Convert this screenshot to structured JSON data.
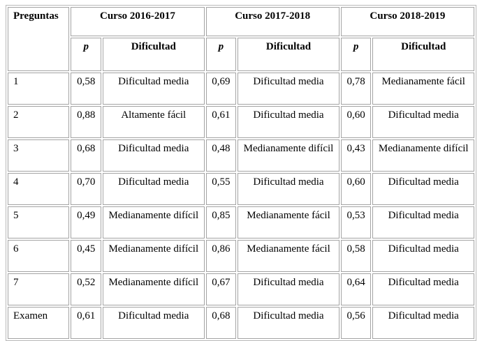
{
  "table": {
    "corner_header": "Preguntas",
    "group_headers": [
      "Curso 2016-2017",
      "Curso 2017-2018",
      "Curso 2018-2019"
    ],
    "sub_header_p": "p",
    "sub_header_dificultad": "Dificultad",
    "rows": [
      {
        "label": "1",
        "values": [
          "0,58",
          "Dificultad media",
          "0,69",
          "Dificultad media",
          "0,78",
          "Medianamente fácil"
        ]
      },
      {
        "label": "2",
        "values": [
          "0,88",
          "Altamente fácil",
          "0,61",
          "Dificultad media",
          "0,60",
          "Dificultad media"
        ]
      },
      {
        "label": "3",
        "values": [
          "0,68",
          "Dificultad media",
          "0,48",
          "Medianamente difícil",
          "0,43",
          "Medianamente difícil"
        ]
      },
      {
        "label": "4",
        "values": [
          "0,70",
          "Dificultad media",
          "0,55",
          "Dificultad media",
          "0,60",
          "Dificultad media"
        ]
      },
      {
        "label": "5",
        "values": [
          "0,49",
          "Medianamente difícil",
          "0,85",
          "Medianamente fácil",
          "0,53",
          "Dificultad media"
        ]
      },
      {
        "label": "6",
        "values": [
          "0,45",
          "Medianamente difícil",
          "0,86",
          "Medianamente fácil",
          "0,58",
          "Dificultad media"
        ]
      },
      {
        "label": "7",
        "values": [
          "0,52",
          "Medianamente difícil",
          "0,67",
          "Dificultad media",
          "0,64",
          "Dificultad media"
        ]
      },
      {
        "label": "Examen",
        "values": [
          "0,61",
          "Dificultad media",
          "0,68",
          "Dificultad media",
          "0,56",
          "Dificultad media"
        ]
      }
    ],
    "colors": {
      "cell_border": "#a3a3a3",
      "outer_border": "#b8b8b8",
      "text": "#000000",
      "background": "#ffffff"
    }
  }
}
